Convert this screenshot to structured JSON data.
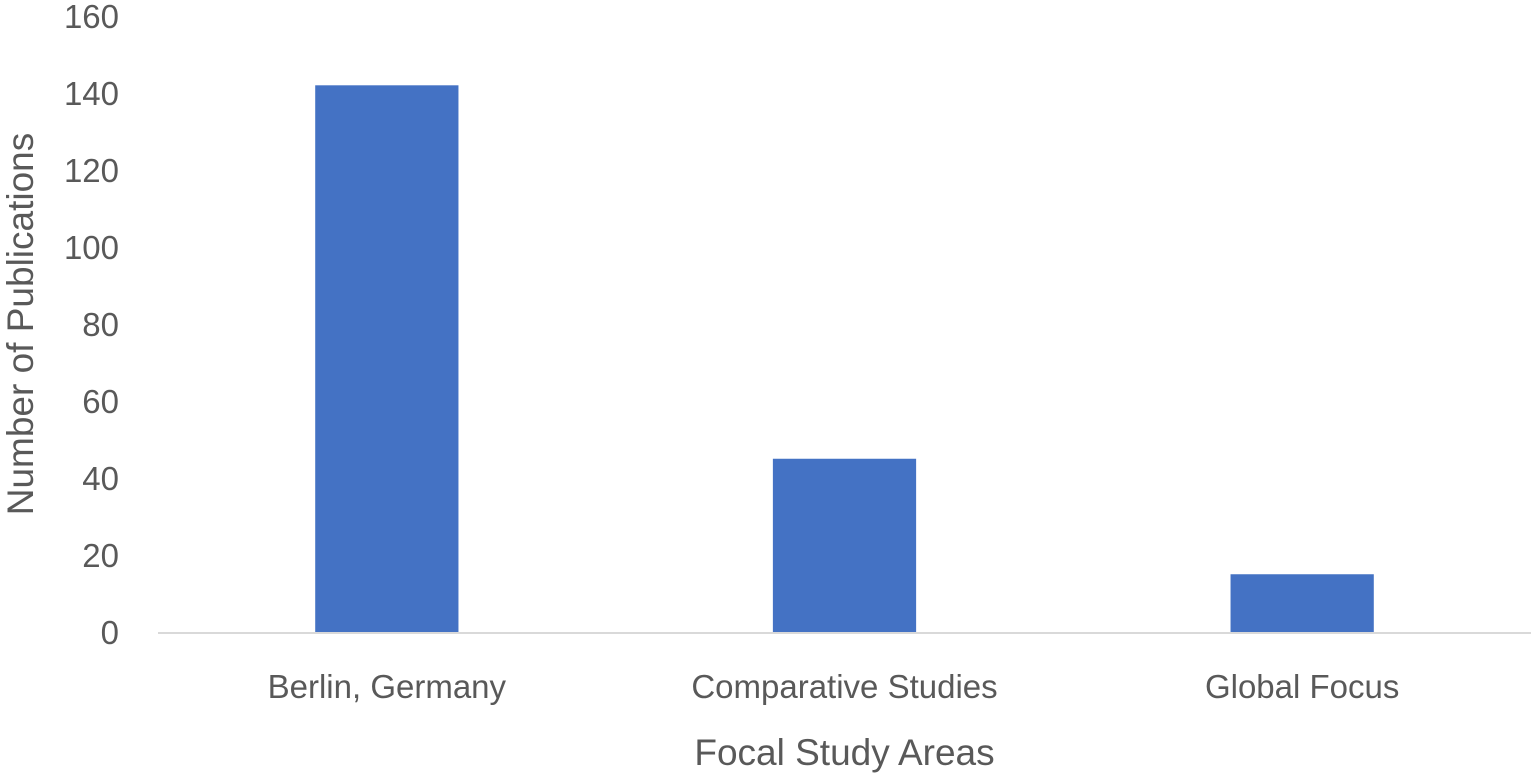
{
  "chart_data": {
    "type": "bar",
    "title": "",
    "xlabel": "Focal Study Areas",
    "ylabel": "Number of Publications",
    "categories": [
      "Berlin, Germany",
      "Comparative Studies",
      "Global Focus"
    ],
    "values": [
      142,
      45,
      15
    ],
    "ylim": [
      0,
      160
    ],
    "yticks": [
      0,
      20,
      40,
      60,
      80,
      100,
      120,
      140,
      160
    ],
    "grid": false,
    "legend": "none",
    "colors": {
      "bar": "#4472C4",
      "axis_line": "#D9D9D9",
      "text": "#595959"
    }
  }
}
